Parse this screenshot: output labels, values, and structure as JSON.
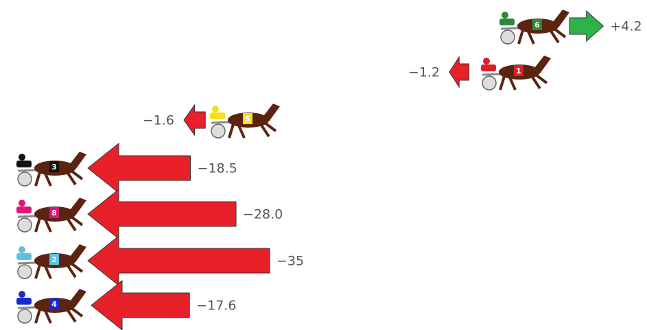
{
  "chart_data": {
    "type": "arrow",
    "categories": [
      "6",
      "1",
      "5",
      "3",
      "8",
      "2",
      "4"
    ],
    "values": [
      4.2,
      -1.2,
      -1.6,
      -18.5,
      -28.0,
      -35,
      -17.6
    ],
    "value_labels": [
      "+4.2",
      "−1.2",
      "−1.6",
      "−18.5",
      "−28.0",
      "−35",
      "−17.6"
    ],
    "cloth_colors": [
      "#2a8a3a",
      "#d8202a",
      "#f2e21a",
      "#111111",
      "#e0147a",
      "#5fc0e0",
      "#1a2ad0"
    ],
    "color_up": "#2db34a",
    "color_down": "#e8202a"
  }
}
